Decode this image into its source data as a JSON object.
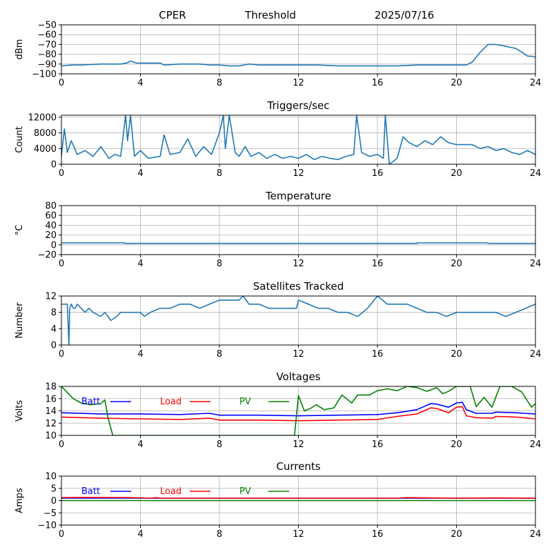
{
  "header": {
    "station": "CPER",
    "mode": "Threshold",
    "date": "2025/07/16"
  },
  "colors": {
    "series": "#1f77b4",
    "batt": "#0000ff",
    "load": "#ff0000",
    "pv": "#008000",
    "grid": "#b0b0b0"
  },
  "chart_data": [
    {
      "type": "line",
      "title": "",
      "ylabel": "dBm",
      "xlim": [
        0,
        24
      ],
      "xticks": [
        0,
        4,
        8,
        12,
        16,
        20,
        24
      ],
      "ylim": [
        -100,
        -50
      ],
      "yticks": [
        -100,
        -90,
        -80,
        -70,
        -60,
        -50
      ],
      "grid": true,
      "series": [
        {
          "x": [
            0,
            0.5,
            1,
            2,
            3,
            3.3,
            3.5,
            3.8,
            4,
            5,
            5.2,
            6,
            7,
            7.5,
            8,
            8.5,
            9,
            9.5,
            10,
            11,
            12,
            13,
            14,
            15,
            16,
            17,
            18,
            19,
            20,
            20.5,
            20.8,
            21.2,
            21.6,
            22,
            22.5,
            23,
            23.4,
            23.6,
            23.8,
            24
          ],
          "y": [
            -92,
            -91,
            -91,
            -90,
            -90,
            -89,
            -87,
            -89,
            -89,
            -89,
            -91,
            -90,
            -90,
            -91,
            -91,
            -92,
            -92,
            -90,
            -91,
            -91,
            -91,
            -91,
            -92,
            -92,
            -92,
            -92,
            -91,
            -91,
            -91,
            -91,
            -88,
            -78,
            -70,
            -70,
            -72,
            -74,
            -79,
            -82,
            -82,
            -83
          ]
        }
      ]
    },
    {
      "type": "line",
      "title": "Triggers/sec",
      "ylabel": "Count",
      "xlim": [
        0,
        24
      ],
      "xticks": [
        0,
        4,
        8,
        12,
        16,
        20,
        24
      ],
      "ylim": [
        0,
        12500
      ],
      "yticks": [
        0,
        4000,
        8000,
        12000
      ],
      "grid": true,
      "series": [
        {
          "x": [
            0,
            0.15,
            0.3,
            0.5,
            0.8,
            1.2,
            1.6,
            2,
            2.4,
            2.7,
            3,
            3.25,
            3.35,
            3.5,
            3.7,
            4,
            4.4,
            5,
            5.2,
            5.5,
            6,
            6.4,
            6.8,
            7.2,
            7.6,
            8,
            8.2,
            8.3,
            8.5,
            8.8,
            9,
            9.3,
            9.6,
            10,
            10.4,
            10.8,
            11.2,
            11.6,
            12,
            12.4,
            12.8,
            13.2,
            13.6,
            14,
            14.4,
            14.8,
            14.95,
            15.2,
            15.6,
            16,
            16.3,
            16.4,
            16.6,
            17,
            17.3,
            17.6,
            18,
            18.4,
            18.8,
            19.2,
            19.6,
            20,
            20.4,
            20.8,
            21.2,
            21.6,
            22,
            22.4,
            22.8,
            23.2,
            23.6,
            24
          ],
          "y": [
            2000,
            9000,
            3000,
            6000,
            2500,
            3500,
            2000,
            4500,
            1500,
            2500,
            2000,
            12500,
            6000,
            12500,
            2000,
            3500,
            1500,
            2000,
            7500,
            2500,
            3000,
            6500,
            2000,
            4500,
            2500,
            8000,
            12500,
            4000,
            12500,
            3000,
            2000,
            4500,
            2000,
            3000,
            1500,
            2500,
            1500,
            2000,
            1500,
            2500,
            1200,
            2000,
            1500,
            1200,
            2000,
            2500,
            12500,
            3000,
            2000,
            2500,
            1500,
            12500,
            0,
            1500,
            7000,
            5500,
            4500,
            6000,
            5000,
            7000,
            5500,
            5000,
            5000,
            5000,
            4000,
            4500,
            3500,
            4000,
            3000,
            2500,
            3500,
            2500
          ]
        }
      ]
    },
    {
      "type": "line",
      "title": "Temperature",
      "ylabel": "°C",
      "xlim": [
        0,
        24
      ],
      "xticks": [
        0,
        4,
        8,
        12,
        16,
        20,
        24
      ],
      "ylim": [
        -20,
        80
      ],
      "yticks": [
        -20,
        0,
        20,
        40,
        60,
        80
      ],
      "grid": true,
      "series": [
        {
          "x": [
            0,
            3.2,
            3.2,
            18,
            18,
            21.6,
            21.6,
            24
          ],
          "y": [
            4,
            4,
            3,
            3,
            4,
            4,
            3,
            3
          ]
        }
      ]
    },
    {
      "type": "line",
      "title": "Satellites Tracked",
      "ylabel": "Number",
      "xlim": [
        0,
        24
      ],
      "xticks": [
        0,
        4,
        8,
        12,
        16,
        20,
        24
      ],
      "ylim": [
        0,
        12
      ],
      "yticks": [
        0,
        4,
        8,
        12
      ],
      "grid": true,
      "series": [
        {
          "x": [
            0,
            0.3,
            0.38,
            0.42,
            0.5,
            0.6,
            0.7,
            0.8,
            1,
            1.2,
            1.4,
            1.6,
            2,
            2.2,
            2.5,
            2.8,
            3,
            3.5,
            3.8,
            4,
            4.2,
            4.5,
            5,
            5.5,
            6,
            6.5,
            7,
            7.5,
            8,
            8.5,
            9,
            9.2,
            9.5,
            10,
            10.5,
            11,
            11.5,
            11.9,
            12,
            12.5,
            13,
            13.5,
            14,
            14.5,
            15,
            15.5,
            16,
            16.5,
            17,
            17.5,
            18,
            18.5,
            19,
            19.5,
            20,
            20.5,
            21,
            21.5,
            22,
            22.5,
            23,
            23.5,
            24
          ],
          "y": [
            10,
            10,
            0,
            9,
            10,
            9,
            9,
            10,
            9,
            8,
            9,
            8,
            7,
            8,
            6,
            7,
            8,
            8,
            8,
            8,
            7,
            8,
            9,
            9,
            10,
            10,
            9,
            10,
            11,
            11,
            11,
            12,
            10,
            10,
            9,
            9,
            9,
            9,
            11,
            10,
            9,
            9,
            8,
            8,
            7,
            9,
            12,
            10,
            10,
            10,
            9,
            8,
            8,
            7,
            8,
            8,
            8,
            8,
            8,
            7,
            8,
            9,
            10
          ]
        }
      ]
    },
    {
      "type": "line",
      "title": "Voltages",
      "ylabel": "Volts",
      "xlim": [
        0,
        24
      ],
      "xticks": [
        0,
        4,
        8,
        12,
        16,
        20,
        24
      ],
      "ylim": [
        10,
        18
      ],
      "yticks": [
        10,
        12,
        14,
        16,
        18
      ],
      "grid": true,
      "legend_placement": "top",
      "series": [
        {
          "name": "Batt",
          "x": [
            0,
            2,
            4,
            6,
            7.5,
            8,
            10,
            12,
            14,
            16,
            17,
            18,
            18.7,
            19,
            19.6,
            20,
            20.3,
            20.5,
            21,
            21.8,
            22,
            23,
            24
          ],
          "y": [
            13.7,
            13.5,
            13.5,
            13.4,
            13.6,
            13.3,
            13.3,
            13.2,
            13.3,
            13.4,
            13.7,
            14.2,
            15.2,
            15.1,
            14.6,
            15.3,
            15.4,
            14.2,
            13.6,
            13.6,
            13.8,
            13.7,
            13.5
          ]
        },
        {
          "name": "Load",
          "x": [
            0,
            2,
            4,
            6,
            7.5,
            8,
            10,
            12,
            14,
            16,
            17,
            18,
            18.7,
            19,
            19.6,
            20,
            20.3,
            20.5,
            21,
            21.8,
            22,
            23,
            24
          ],
          "y": [
            13.0,
            12.8,
            12.7,
            12.6,
            12.8,
            12.5,
            12.5,
            12.4,
            12.5,
            12.6,
            13.1,
            13.5,
            14.5,
            14.4,
            13.7,
            14.6,
            14.7,
            13.2,
            12.9,
            12.8,
            13.1,
            13.0,
            12.7
          ]
        },
        {
          "name": "PV",
          "x": [
            0,
            0.3,
            0.6,
            1,
            1.5,
            2,
            2.2,
            2.35,
            2.6,
            11.8,
            12,
            12.3,
            12.6,
            12.9,
            13.3,
            13.8,
            14.2,
            14.7,
            15,
            15.6,
            16,
            16.5,
            17,
            17.5,
            18,
            18.5,
            19,
            19.3,
            19.6,
            20,
            20.3,
            20.7,
            21,
            21.4,
            21.8,
            22.2,
            22.8,
            23.3,
            23.8,
            24
          ],
          "y": [
            18.0,
            17,
            16,
            15.3,
            15,
            15.2,
            15.8,
            13,
            10,
            10,
            16.5,
            14,
            14.4,
            15,
            14.2,
            14.5,
            16.6,
            15.3,
            16.6,
            16.6,
            17.3,
            17.6,
            17.3,
            18,
            17.8,
            17.2,
            17.8,
            16.8,
            17.2,
            18,
            18,
            18,
            14.7,
            16.2,
            14.6,
            18,
            18,
            17.1,
            14.6,
            15.2
          ]
        }
      ]
    },
    {
      "type": "line",
      "title": "Currents",
      "ylabel": "Amps",
      "xlim": [
        0,
        24
      ],
      "xticks": [
        0,
        4,
        8,
        12,
        16,
        20,
        24
      ],
      "ylim": [
        -10,
        10
      ],
      "yticks": [
        -10,
        -5,
        0,
        5,
        10
      ],
      "grid": true,
      "legend_placement": "top",
      "series": [
        {
          "name": "Batt",
          "x": [
            0,
            24
          ],
          "y": [
            1.0,
            1.0
          ]
        },
        {
          "name": "Load",
          "x": [
            0,
            1,
            3.5,
            4.5,
            4.8,
            5.1,
            8,
            12,
            16,
            17,
            17.5,
            20,
            22,
            24
          ],
          "y": [
            1.2,
            1.3,
            1.2,
            1.0,
            1.2,
            1.0,
            1.0,
            1.0,
            1.0,
            1.0,
            1.2,
            1.0,
            1.1,
            1.0
          ]
        },
        {
          "name": "PV",
          "x": [
            0,
            24
          ],
          "y": [
            0,
            0
          ]
        }
      ]
    }
  ]
}
